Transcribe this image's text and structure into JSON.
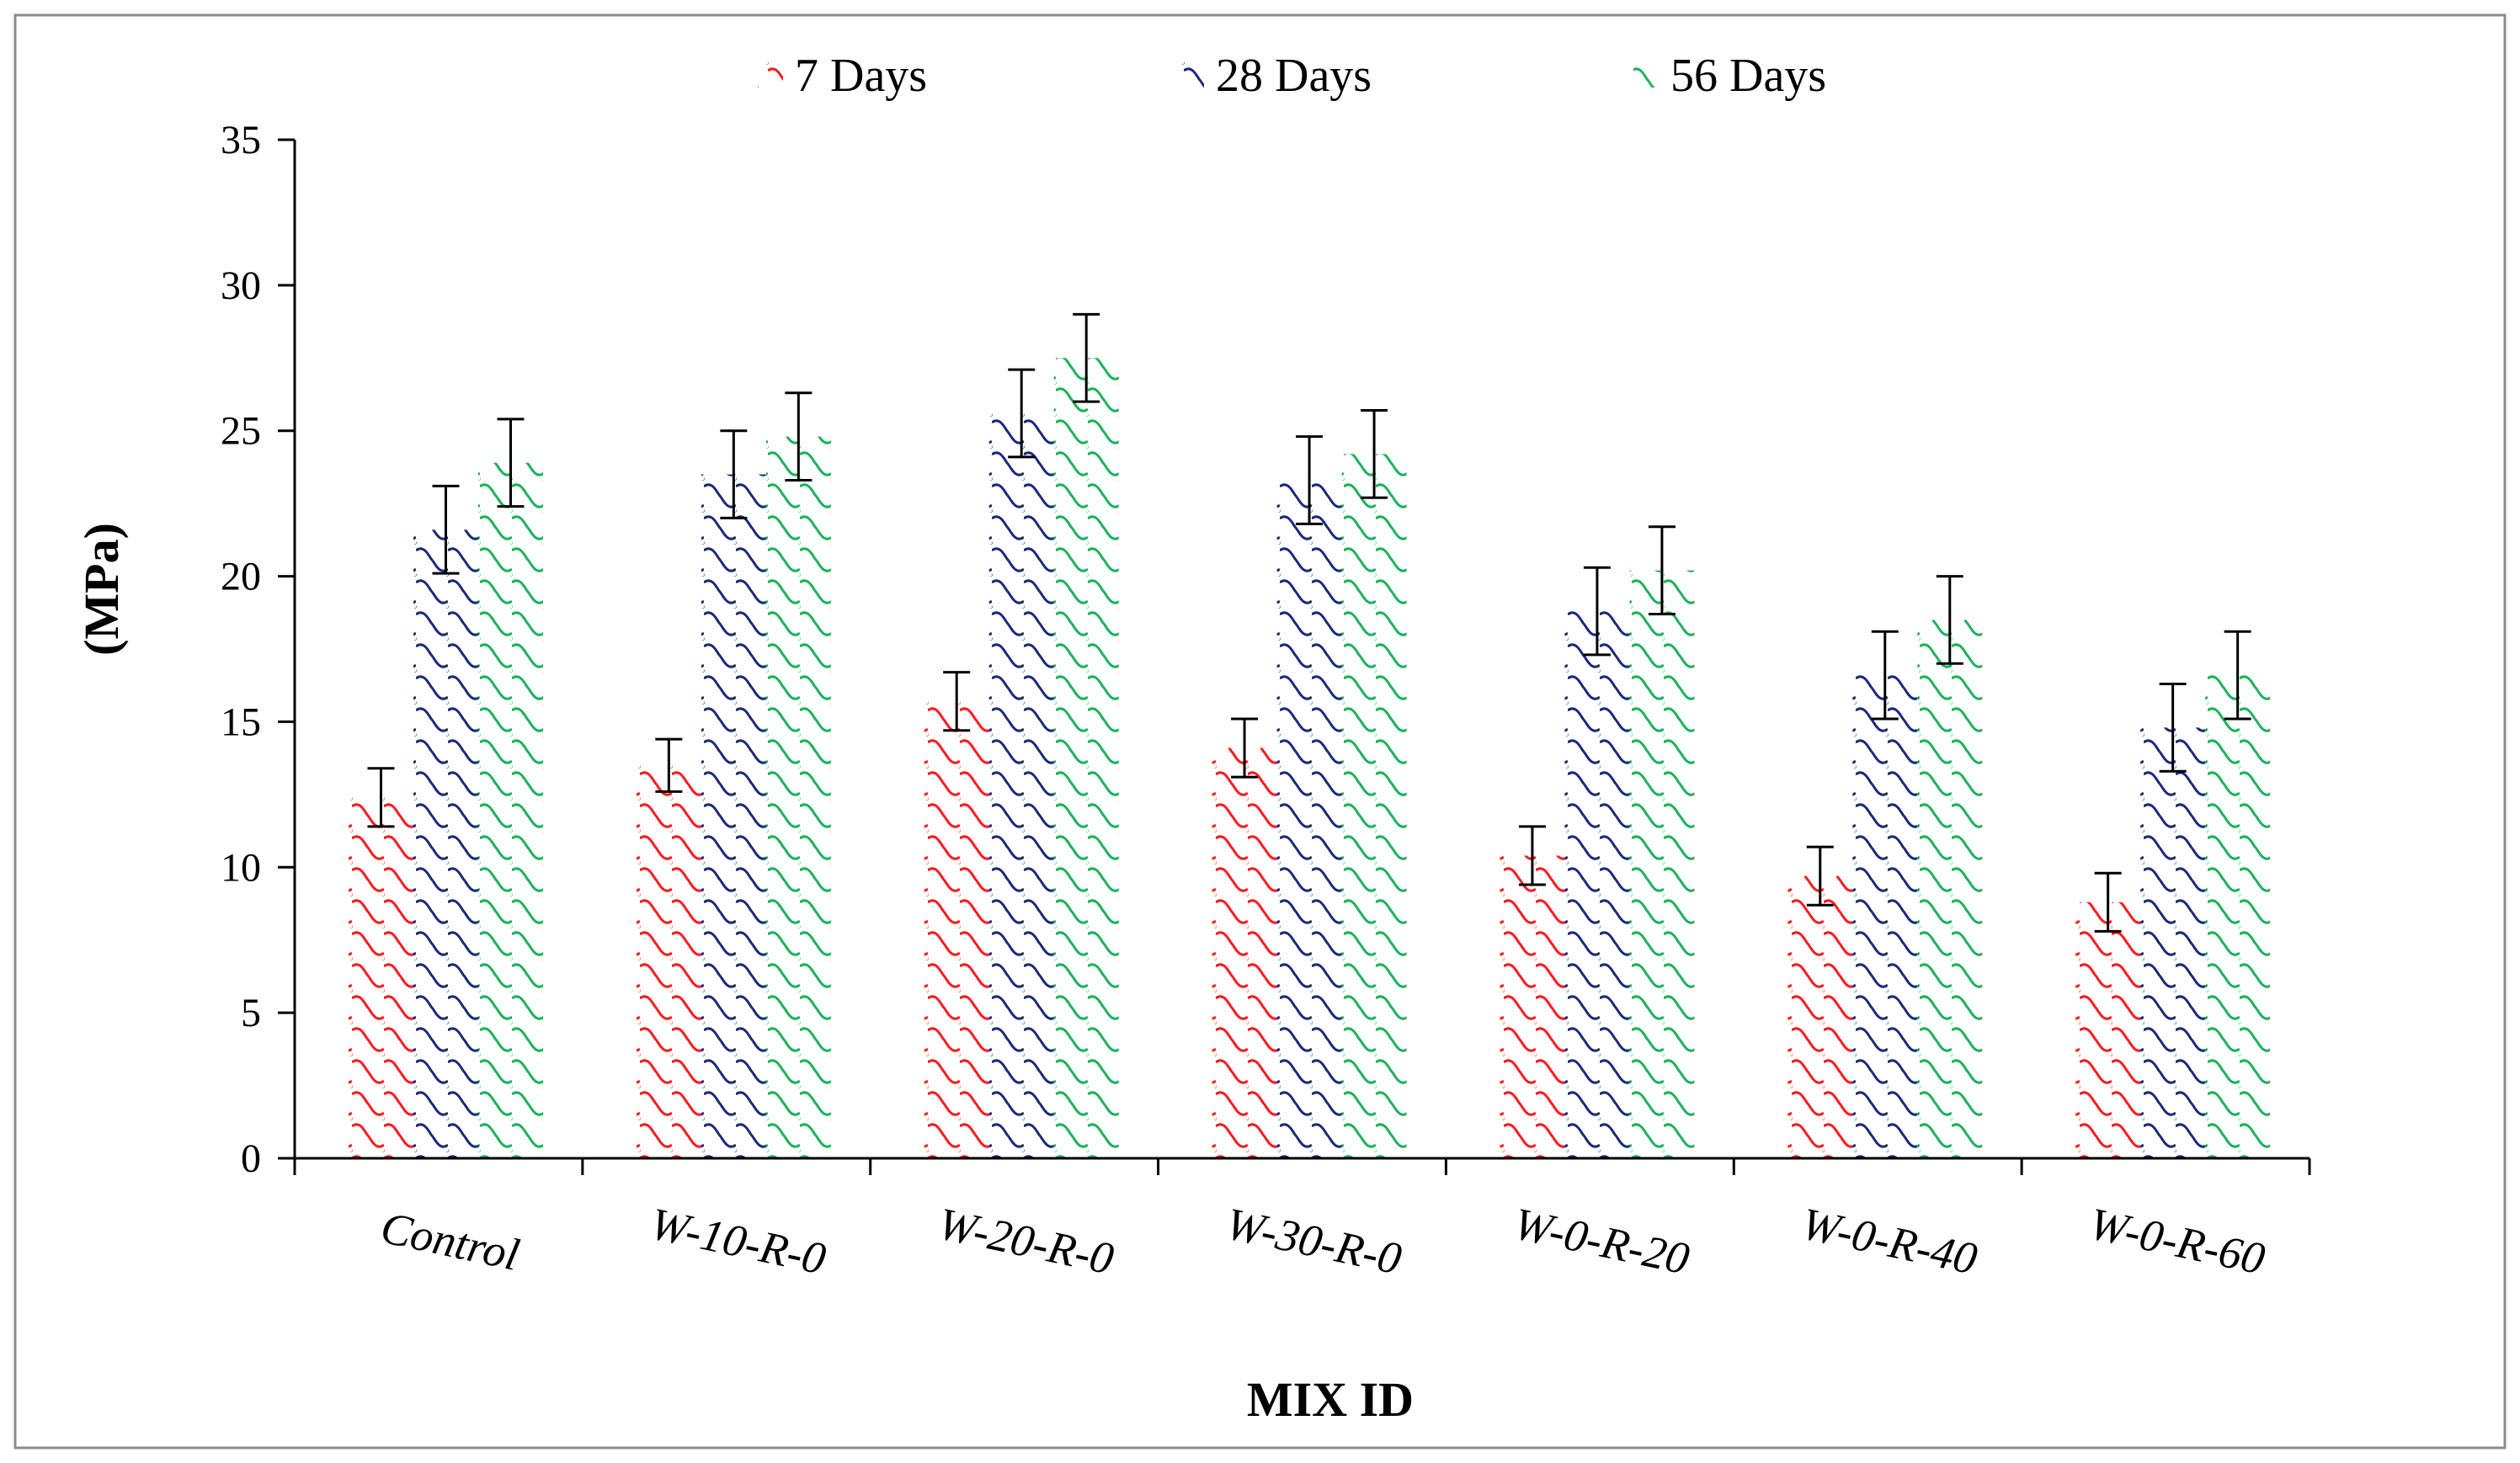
{
  "chart_data": {
    "type": "bar",
    "title": "",
    "xlabel": "MIX ID",
    "ylabel": "(MPa)",
    "ylim": [
      0,
      35
    ],
    "yticks": [
      0,
      5,
      10,
      15,
      20,
      25,
      30,
      35
    ],
    "grid": false,
    "legend_position": "top",
    "categories": [
      "Control",
      "W-10-R-0",
      "W-20-R-0",
      "W-30-R-0",
      "W-0-R-20",
      "W-0-R-40",
      "W-0-R-60"
    ],
    "series": [
      {
        "name": "7 Days",
        "color": "#ff1a1a",
        "values": [
          12.4,
          13.5,
          15.7,
          14.1,
          10.4,
          9.7,
          8.8
        ],
        "errors": [
          1.0,
          0.9,
          1.0,
          1.0,
          1.0,
          1.0,
          1.0
        ]
      },
      {
        "name": "28 Days",
        "color": "#1a2a80",
        "values": [
          21.6,
          23.5,
          25.6,
          23.3,
          18.8,
          16.6,
          14.8
        ],
        "errors": [
          1.5,
          1.5,
          1.5,
          1.5,
          1.5,
          1.5,
          1.5
        ]
      },
      {
        "name": "56 Days",
        "color": "#1ab35a",
        "values": [
          23.9,
          24.8,
          27.5,
          24.2,
          20.2,
          18.5,
          16.6
        ],
        "errors": [
          1.5,
          1.5,
          1.5,
          1.5,
          1.5,
          1.5,
          1.5
        ]
      }
    ]
  }
}
